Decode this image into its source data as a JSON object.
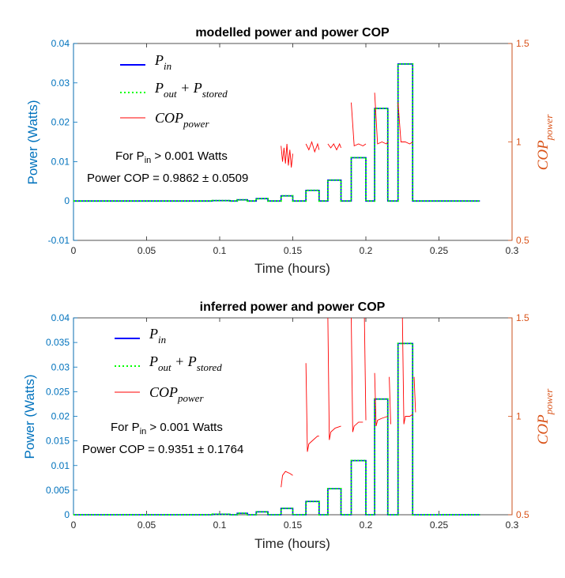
{
  "colors": {
    "pin": "#0000FF",
    "pout": "#00FF00",
    "cop": "#FF0000",
    "left_axis": "#0072BD",
    "right_axis": "#D95319"
  },
  "chart_data": [
    {
      "type": "line",
      "title": "modelled power and power COP",
      "xlabel": "Time (hours)",
      "ylabel": "Power (Watts)",
      "y2label": "COP_power",
      "xlim": [
        0,
        0.3
      ],
      "ylim": [
        -0.01,
        0.04
      ],
      "y2lim": [
        0.5,
        1.5
      ],
      "xticks": [
        0,
        0.05,
        0.1,
        0.15,
        0.2,
        0.25,
        0.3
      ],
      "xtick_labels": [
        "0",
        "0.05",
        "0.1",
        "0.15",
        "0.2",
        "0.25",
        "0.3"
      ],
      "yticks": [
        -0.01,
        0,
        0.01,
        0.02,
        0.03,
        0.04
      ],
      "ytick_labels": [
        "-0.01",
        "0",
        "0.01",
        "0.02",
        "0.03",
        "0.04"
      ],
      "y2ticks": [
        0.5,
        1,
        1.5
      ],
      "y2tick_labels": [
        "0.5",
        "1",
        "1.5"
      ],
      "legend": [
        "P_in",
        "P_out + P_stored",
        "COP_power"
      ],
      "legend_position": "top-left",
      "annotation": {
        "line1": "For P_in > 0.001 Watts",
        "line2": "Power COP = 0.9862 ± 0.0509"
      },
      "grid": false,
      "pulses": [
        {
          "start": 0.095,
          "end": 0.107,
          "power": 0.0001
        },
        {
          "start": 0.112,
          "end": 0.119,
          "power": 0.0003
        },
        {
          "start": 0.125,
          "end": 0.133,
          "power": 0.0006
        },
        {
          "start": 0.142,
          "end": 0.15,
          "power": 0.0013
        },
        {
          "start": 0.159,
          "end": 0.168,
          "power": 0.0027
        },
        {
          "start": 0.174,
          "end": 0.183,
          "power": 0.0053
        },
        {
          "start": 0.19,
          "end": 0.2,
          "power": 0.011
        },
        {
          "start": 0.206,
          "end": 0.215,
          "power": 0.0235
        },
        {
          "start": 0.222,
          "end": 0.232,
          "power": 0.0348
        }
      ],
      "pulse_end_time": 0.278,
      "series": [
        {
          "name": "P_in",
          "axis": "left",
          "style": "solid",
          "color_key": "pin"
        },
        {
          "name": "P_out + P_stored",
          "axis": "left",
          "style": "dotted",
          "color_key": "pout"
        },
        {
          "name": "COP_power",
          "axis": "right",
          "style": "solid",
          "color_key": "cop",
          "segments": [
            {
              "x": [
                0.142,
                0.143,
                0.144,
                0.145,
                0.146,
                0.147,
                0.148,
                0.149,
                0.15
              ],
              "y": [
                0.98,
                0.9,
                0.97,
                0.89,
                0.99,
                0.88,
                0.96,
                0.87,
                0.94
              ]
            },
            {
              "x": [
                0.159,
                0.161,
                0.163,
                0.165,
                0.167,
                0.168
              ],
              "y": [
                0.99,
                0.96,
                1.0,
                0.95,
                0.99,
                0.96
              ]
            },
            {
              "x": [
                0.174,
                0.176,
                0.178,
                0.18,
                0.182,
                0.183
              ],
              "y": [
                0.99,
                0.97,
                0.99,
                0.96,
                0.99,
                0.97
              ]
            },
            {
              "x": [
                0.19,
                0.192,
                0.195,
                0.198,
                0.2
              ],
              "y": [
                1.2,
                0.98,
                0.99,
                0.98,
                0.99
              ]
            },
            {
              "x": [
                0.206,
                0.208,
                0.211,
                0.214,
                0.215
              ],
              "y": [
                1.25,
                0.99,
                1.0,
                0.99,
                1.0
              ]
            },
            {
              "x": [
                0.222,
                0.224,
                0.227,
                0.23,
                0.232
              ],
              "y": [
                1.2,
                1.0,
                1.0,
                0.99,
                1.0
              ]
            }
          ]
        }
      ]
    },
    {
      "type": "line",
      "title": "inferred power and power COP",
      "xlabel": "Time (hours)",
      "ylabel": "Power (Watts)",
      "y2label": "COP_power",
      "xlim": [
        0,
        0.3
      ],
      "ylim": [
        0,
        0.04
      ],
      "y2lim": [
        0.5,
        1.5
      ],
      "xticks": [
        0,
        0.05,
        0.1,
        0.15,
        0.2,
        0.25,
        0.3
      ],
      "xtick_labels": [
        "0",
        "0.05",
        "0.1",
        "0.15",
        "0.2",
        "0.25",
        "0.3"
      ],
      "yticks": [
        0,
        0.005,
        0.01,
        0.015,
        0.02,
        0.025,
        0.03,
        0.035,
        0.04
      ],
      "ytick_labels": [
        "0",
        "0.005",
        "0.01",
        "0.015",
        "0.02",
        "0.025",
        "0.03",
        "0.035",
        "0.04"
      ],
      "y2ticks": [
        0.5,
        1,
        1.5
      ],
      "y2tick_labels": [
        "0.5",
        "1",
        "1.5"
      ],
      "legend": [
        "P_in",
        "P_out + P_stored",
        "COP_power"
      ],
      "legend_position": "top-left",
      "annotation": {
        "line1": "For P_in > 0.001 Watts",
        "line2": "Power COP = 0.9351 ± 0.1764"
      },
      "grid": false,
      "pulses": [
        {
          "start": 0.095,
          "end": 0.107,
          "power": 0.0001
        },
        {
          "start": 0.112,
          "end": 0.119,
          "power": 0.0003
        },
        {
          "start": 0.125,
          "end": 0.133,
          "power": 0.0006
        },
        {
          "start": 0.142,
          "end": 0.15,
          "power": 0.0013
        },
        {
          "start": 0.159,
          "end": 0.168,
          "power": 0.0027
        },
        {
          "start": 0.174,
          "end": 0.183,
          "power": 0.0053
        },
        {
          "start": 0.19,
          "end": 0.2,
          "power": 0.011
        },
        {
          "start": 0.206,
          "end": 0.215,
          "power": 0.0235
        },
        {
          "start": 0.222,
          "end": 0.232,
          "power": 0.0348
        }
      ],
      "pulse_end_time": 0.278,
      "series": [
        {
          "name": "P_in",
          "axis": "left",
          "style": "solid",
          "color_key": "pin"
        },
        {
          "name": "P_out + P_stored",
          "axis": "left",
          "style": "dotted",
          "color_key": "pout"
        },
        {
          "name": "COP_power",
          "axis": "right",
          "style": "solid",
          "color_key": "cop",
          "segments": [
            {
              "x": [
                0.142,
                0.143,
                0.145,
                0.148,
                0.15
              ],
              "y": [
                0.64,
                0.7,
                0.72,
                0.71,
                0.7
              ]
            },
            {
              "x": [
                0.159,
                0.16,
                0.161,
                0.164,
                0.167,
                0.168
              ],
              "y": [
                1.27,
                0.82,
                0.86,
                0.88,
                0.9,
                0.9
              ]
            },
            {
              "x": [
                0.174,
                0.175,
                0.176,
                0.179,
                0.183
              ],
              "y": [
                1.5,
                0.88,
                0.92,
                0.94,
                0.95
              ]
            },
            {
              "x": [
                0.19,
                0.191,
                0.192,
                0.195,
                0.198
              ],
              "y": [
                1.5,
                0.92,
                0.95,
                0.97,
                0.97
              ]
            },
            {
              "x": [
                0.199,
                0.2
              ],
              "y": [
                1.5,
                0.98
              ]
            },
            {
              "x": [
                0.206,
                0.207,
                0.208,
                0.211,
                0.215
              ],
              "y": [
                1.22,
                0.95,
                0.98,
                0.99,
                1.0
              ]
            },
            {
              "x": [
                0.216,
                0.217
              ],
              "y": [
                1.2,
                0.96
              ]
            },
            {
              "x": [
                0.225,
                0.226,
                0.227,
                0.23,
                0.232
              ],
              "y": [
                1.5,
                0.96,
                1.0,
                1.0,
                1.01
              ]
            },
            {
              "x": [
                0.233,
                0.234
              ],
              "y": [
                1.2,
                1.02
              ]
            }
          ]
        }
      ]
    }
  ]
}
